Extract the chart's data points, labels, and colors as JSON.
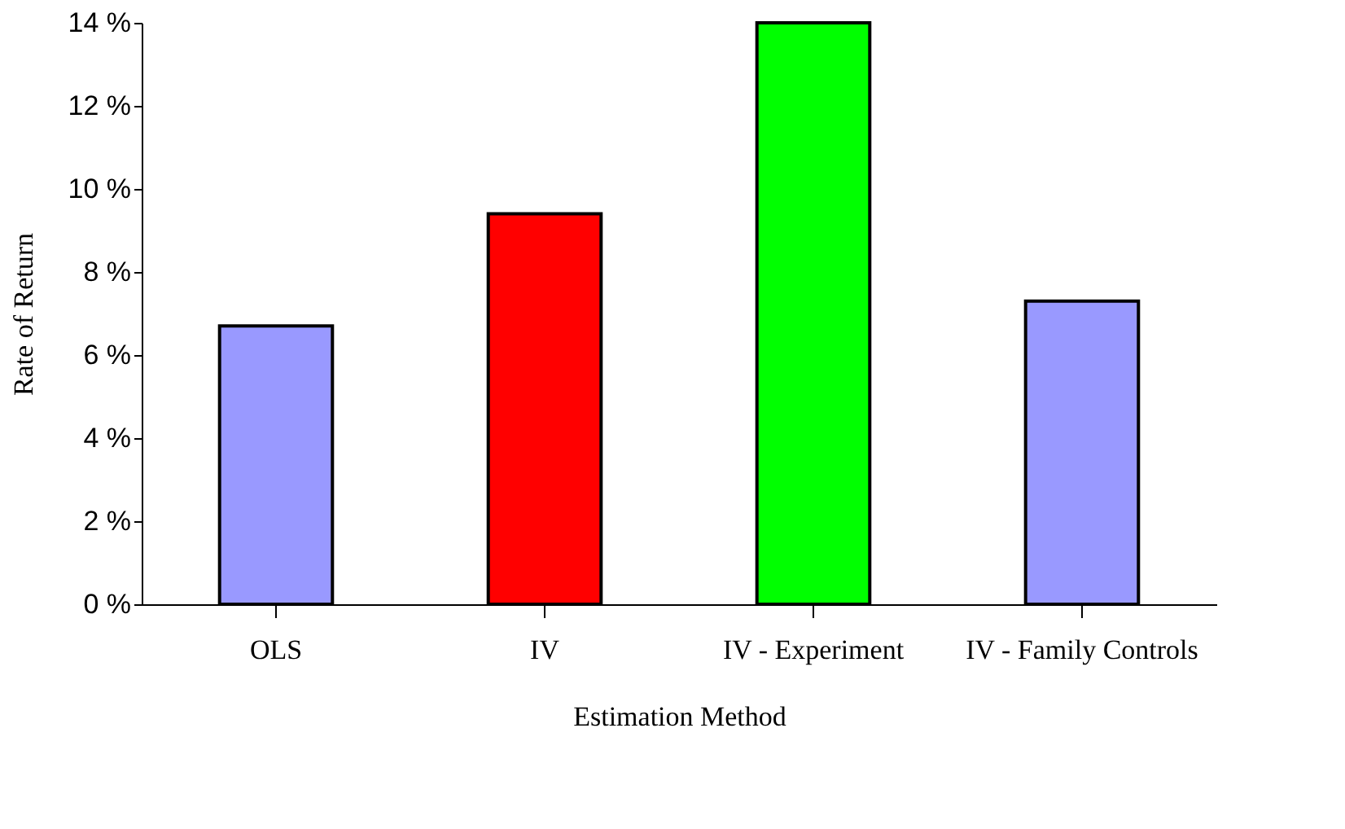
{
  "chart_data": {
    "type": "bar",
    "xlabel": "Estimation Method",
    "ylabel": "Rate of Return",
    "categories": [
      "OLS",
      "IV",
      "IV - Experiment",
      "IV - Family Controls"
    ],
    "values": [
      6.7,
      9.4,
      14.0,
      7.3
    ],
    "colors": [
      "#9999ff",
      "#ff0000",
      "#00ff00",
      "#9999ff"
    ],
    "ylim": [
      0,
      14
    ],
    "yticks": [
      {
        "value": 0,
        "label": "0 %"
      },
      {
        "value": 2,
        "label": "2 %"
      },
      {
        "value": 4,
        "label": "4 %"
      },
      {
        "value": 6,
        "label": "6 %"
      },
      {
        "value": 8,
        "label": "8 %"
      },
      {
        "value": 10,
        "label": "10 %"
      },
      {
        "value": 12,
        "label": "12 %"
      },
      {
        "value": 14,
        "label": "14 %"
      }
    ],
    "grid": false
  }
}
